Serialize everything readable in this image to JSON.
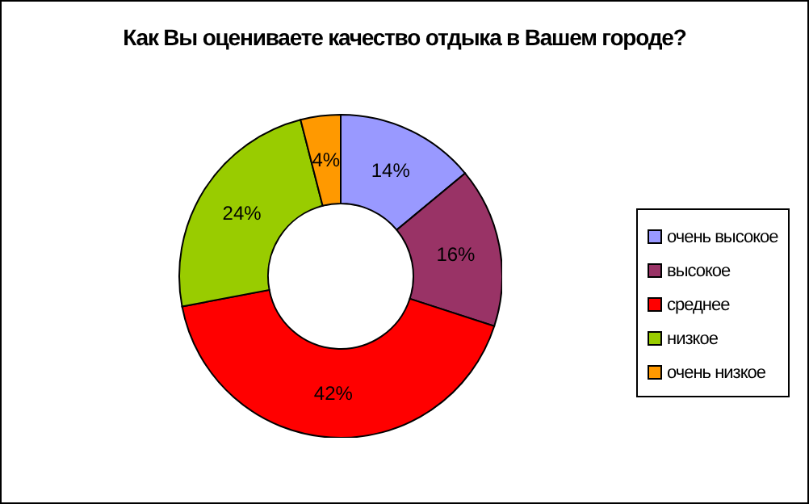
{
  "chart_data": {
    "type": "donut",
    "title": "Как Вы оцениваете качество отдыка в Вашем городе?",
    "categories": [
      "очень высокое",
      "высокое",
      "среднее",
      "низкое",
      "очень низкое"
    ],
    "values": [
      14,
      16,
      42,
      24,
      4
    ],
    "colors": [
      "#9999ff",
      "#993366",
      "#ff0000",
      "#99cc00",
      "#ff9900"
    ],
    "value_labels": [
      "14%",
      "16%",
      "42%",
      "24%",
      "4%"
    ],
    "legend": "right"
  }
}
